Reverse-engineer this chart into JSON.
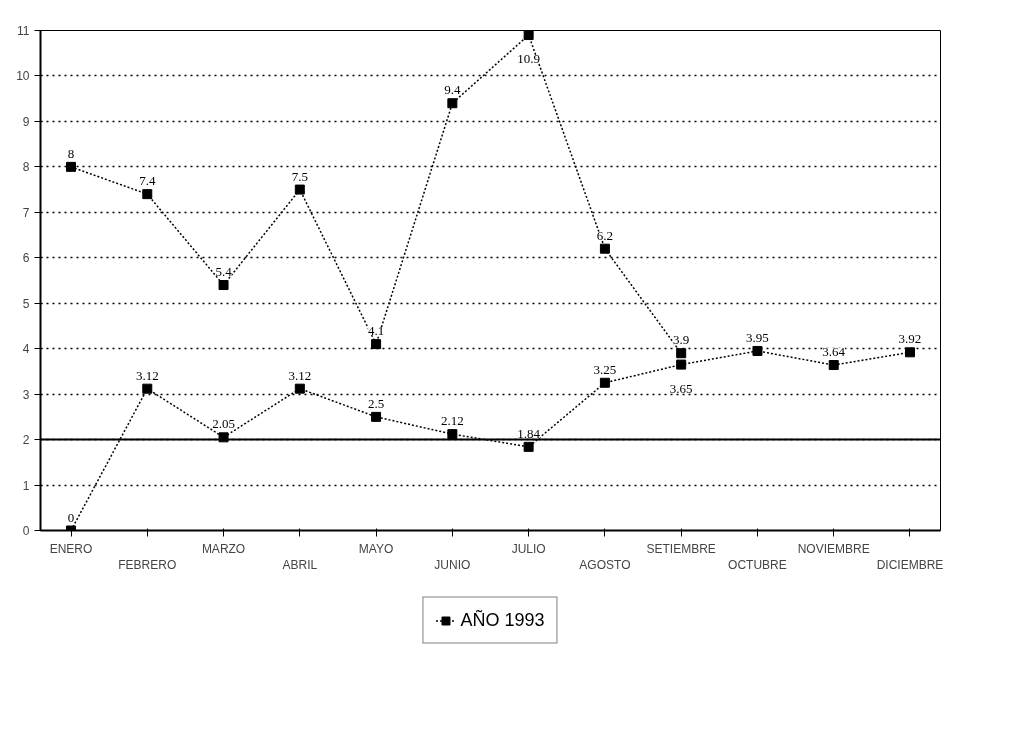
{
  "chart_data": {
    "type": "line",
    "categories": [
      "ENERO",
      "FEBRERO",
      "MARZO",
      "ABRIL",
      "MAYO",
      "JUNIO",
      "JULIO",
      "AGOSTO",
      "SETIEMBRE",
      "OCTUBRE",
      "NOVIEMBRE",
      "DICIEMBRE"
    ],
    "series": [
      {
        "name": "AÑO 1993",
        "color": "#000000",
        "values": [
          8,
          7.4,
          5.4,
          7.5,
          4.1,
          9.4,
          10.9,
          6.2,
          3.9,
          null,
          null,
          null
        ]
      },
      {
        "color": "#000000",
        "values": [
          0,
          3.12,
          2.05,
          3.12,
          2.5,
          2.12,
          1.84,
          3.25,
          3.65,
          3.95,
          3.64,
          3.92
        ]
      }
    ],
    "ylim": [
      0,
      11
    ],
    "yticks": [
      0,
      1,
      2,
      3,
      4,
      5,
      6,
      7,
      8,
      9,
      10,
      11
    ],
    "ref_lines": [
      {
        "axis": "y",
        "value": 2,
        "color": "#000000",
        "line_style": "solid"
      }
    ],
    "grid": "y",
    "legend": "bottom",
    "marker": "square",
    "line_style": "dotted",
    "data_labels": true
  }
}
